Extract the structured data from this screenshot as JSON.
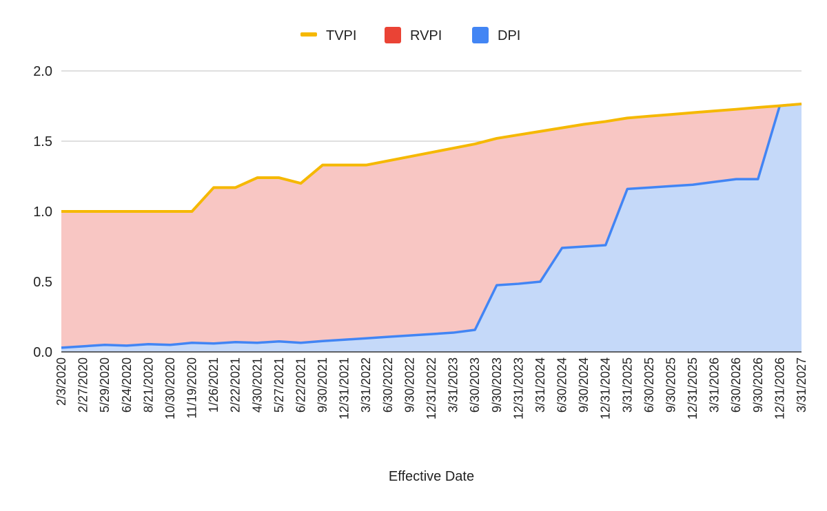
{
  "chart_data": {
    "type": "area",
    "title": "",
    "xlabel": "Effective Date",
    "ylabel": "",
    "ylim": [
      0,
      2
    ],
    "y_ticks": [
      "0.0",
      "0.5",
      "1.0",
      "1.5",
      "2.0"
    ],
    "grid": true,
    "legend_position": "top-center",
    "categories": [
      "2/3/2020",
      "2/27/2020",
      "5/29/2020",
      "6/24/2020",
      "8/21/2020",
      "10/30/2020",
      "11/19/2020",
      "1/26/2021",
      "2/22/2021",
      "4/30/2021",
      "5/27/2021",
      "6/22/2021",
      "9/30/2021",
      "12/31/2021",
      "3/31/2022",
      "6/30/2022",
      "9/30/2022",
      "12/31/2022",
      "3/31/2023",
      "6/30/2023",
      "9/30/2023",
      "12/31/2023",
      "3/31/2024",
      "6/30/2024",
      "9/30/2024",
      "12/31/2024",
      "3/31/2025",
      "6/30/2025",
      "9/30/2025",
      "12/31/2025",
      "3/31/2026",
      "6/30/2026",
      "9/30/2026",
      "12/31/2026",
      "3/31/2027"
    ],
    "series": [
      {
        "name": "TVPI",
        "color": "#f5b800",
        "style": "line",
        "values": [
          1.0,
          1.0,
          1.0,
          1.0,
          1.0,
          1.0,
          1.0,
          1.17,
          1.17,
          1.24,
          1.24,
          1.2,
          1.33,
          1.33,
          1.33,
          1.36,
          1.39,
          1.42,
          1.45,
          1.48,
          1.52,
          1.545,
          1.57,
          1.595,
          1.62,
          1.64,
          1.665,
          1.678,
          1.69,
          1.703,
          1.715,
          1.727,
          1.74,
          1.752,
          1.765
        ]
      },
      {
        "name": "RVPI",
        "color": "#ea4335",
        "fill_color": "#f8c6c3",
        "style": "area",
        "values": [
          0.97,
          0.96,
          0.95,
          0.955,
          0.945,
          0.95,
          0.935,
          1.11,
          1.1,
          1.175,
          1.165,
          1.135,
          1.253,
          1.243,
          1.233,
          1.253,
          1.273,
          1.293,
          1.313,
          1.323,
          1.045,
          1.06,
          1.07,
          0.855,
          0.87,
          0.88,
          0.505,
          0.508,
          0.51,
          0.513,
          0.505,
          0.497,
          0.51,
          0.0,
          0.0
        ]
      },
      {
        "name": "DPI",
        "color": "#4285f4",
        "fill_color": "#c5d9f9",
        "style": "area",
        "values": [
          0.03,
          0.04,
          0.05,
          0.045,
          0.055,
          0.05,
          0.065,
          0.06,
          0.07,
          0.065,
          0.075,
          0.065,
          0.077,
          0.087,
          0.097,
          0.107,
          0.117,
          0.127,
          0.137,
          0.157,
          0.475,
          0.485,
          0.5,
          0.74,
          0.75,
          0.76,
          1.16,
          1.17,
          1.18,
          1.19,
          1.21,
          1.23,
          1.23,
          1.752,
          1.765
        ]
      }
    ]
  }
}
